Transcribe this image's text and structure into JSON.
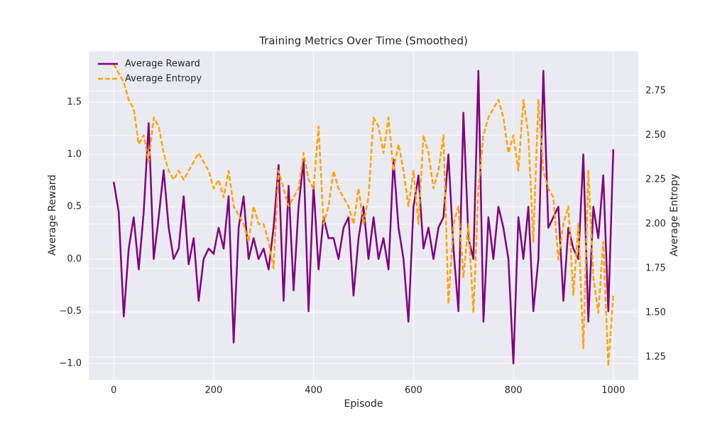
{
  "chart_data": {
    "type": "line",
    "title": "Training Metrics Over Time (Smoothed)",
    "x_label": "Episode",
    "y_label": "Average Reward",
    "y2_label": "Average Entropy",
    "x": [
      0,
      10,
      20,
      30,
      40,
      50,
      60,
      70,
      80,
      90,
      100,
      110,
      120,
      130,
      140,
      150,
      160,
      170,
      180,
      190,
      200,
      210,
      220,
      230,
      240,
      250,
      260,
      270,
      280,
      290,
      300,
      310,
      320,
      330,
      340,
      350,
      360,
      370,
      380,
      390,
      400,
      410,
      420,
      430,
      440,
      450,
      460,
      470,
      480,
      490,
      500,
      510,
      520,
      530,
      540,
      550,
      560,
      570,
      580,
      590,
      600,
      610,
      620,
      630,
      640,
      650,
      660,
      670,
      680,
      690,
      700,
      710,
      720,
      730,
      740,
      750,
      760,
      770,
      780,
      790,
      800,
      810,
      820,
      830,
      840,
      850,
      860,
      870,
      880,
      890,
      900,
      910,
      920,
      930,
      940,
      950,
      960,
      970,
      980,
      990,
      1000
    ],
    "series": [
      {
        "name": "Average Reward",
        "color": "#800080",
        "linestyle": "solid",
        "values": [
          0.74,
          0.45,
          -0.55,
          0.1,
          0.4,
          -0.1,
          0.45,
          1.3,
          0.0,
          0.4,
          0.85,
          0.3,
          0.0,
          0.1,
          0.6,
          -0.05,
          0.2,
          -0.4,
          0.0,
          0.1,
          0.05,
          0.3,
          0.1,
          0.6,
          -0.8,
          0.3,
          0.6,
          0.0,
          0.2,
          0.0,
          0.1,
          -0.1,
          0.3,
          0.9,
          -0.4,
          0.7,
          -0.3,
          0.5,
          0.95,
          -0.5,
          0.7,
          -0.1,
          0.4,
          0.2,
          0.2,
          0.0,
          0.3,
          0.4,
          -0.35,
          0.2,
          0.5,
          0.0,
          0.4,
          0.0,
          0.2,
          -0.1,
          0.95,
          0.3,
          0.0,
          -0.6,
          0.5,
          0.8,
          0.1,
          0.3,
          0.0,
          0.3,
          0.4,
          1.0,
          0.1,
          -0.5,
          1.4,
          0.2,
          0.0,
          1.8,
          -0.6,
          0.4,
          0.0,
          0.5,
          0.3,
          0.0,
          -1.0,
          0.4,
          0.0,
          0.5,
          -0.5,
          0.0,
          1.8,
          0.3,
          0.4,
          0.5,
          -0.4,
          0.3,
          0.1,
          0.0,
          1.0,
          -0.6,
          0.5,
          0.2,
          0.8,
          -0.5,
          1.05
        ]
      },
      {
        "name": "Average Entropy",
        "color": "#ffa500",
        "linestyle": "dashed",
        "axis": "y2",
        "values": [
          2.9,
          2.85,
          2.8,
          2.7,
          2.65,
          2.45,
          2.5,
          2.35,
          2.6,
          2.55,
          2.4,
          2.3,
          2.25,
          2.3,
          2.25,
          2.3,
          2.35,
          2.4,
          2.35,
          2.3,
          2.2,
          2.25,
          2.15,
          2.3,
          2.1,
          2.05,
          2.0,
          1.9,
          2.1,
          2.0,
          2.0,
          1.9,
          1.75,
          2.3,
          2.2,
          2.1,
          2.15,
          2.2,
          2.4,
          2.25,
          2.2,
          2.55,
          2.0,
          2.1,
          2.3,
          2.2,
          2.15,
          2.1,
          2.0,
          2.2,
          2.0,
          2.15,
          2.6,
          2.55,
          2.4,
          2.6,
          2.3,
          2.45,
          2.3,
          2.1,
          2.3,
          2.0,
          2.5,
          2.4,
          2.2,
          2.3,
          2.5,
          1.55,
          2.0,
          2.1,
          1.7,
          2.0,
          1.5,
          2.2,
          2.5,
          2.6,
          2.65,
          2.7,
          2.6,
          2.4,
          2.5,
          2.3,
          2.7,
          2.5,
          1.9,
          2.7,
          2.3,
          2.2,
          2.15,
          1.8,
          2.0,
          2.1,
          1.6,
          2.0,
          1.3,
          2.3,
          1.7,
          1.5,
          1.9,
          1.2,
          1.6
        ]
      }
    ],
    "xlim": [
      -50,
      1050
    ],
    "xticks": [
      0,
      200,
      400,
      600,
      800,
      1000
    ],
    "ylim": [
      -1.156,
      1.989
    ],
    "yticks": [
      {
        "value": -1.0,
        "label": "−1.0"
      },
      {
        "value": -0.5,
        "label": "−0.5"
      },
      {
        "value": 0.0,
        "label": "0.0"
      },
      {
        "value": 0.5,
        "label": "0.5"
      },
      {
        "value": 1.0,
        "label": "1.0"
      },
      {
        "value": 1.5,
        "label": "1.5"
      }
    ],
    "y2lim": [
      1.122,
      2.974
    ],
    "y2ticks": [
      1.25,
      {
        "value": 1.5,
        "label": "1.50"
      },
      1.75,
      {
        "value": 2.0,
        "label": "2.00"
      },
      2.25,
      {
        "value": 2.5,
        "label": "2.50"
      },
      2.75
    ],
    "grid": true,
    "legend": "upper-left"
  }
}
